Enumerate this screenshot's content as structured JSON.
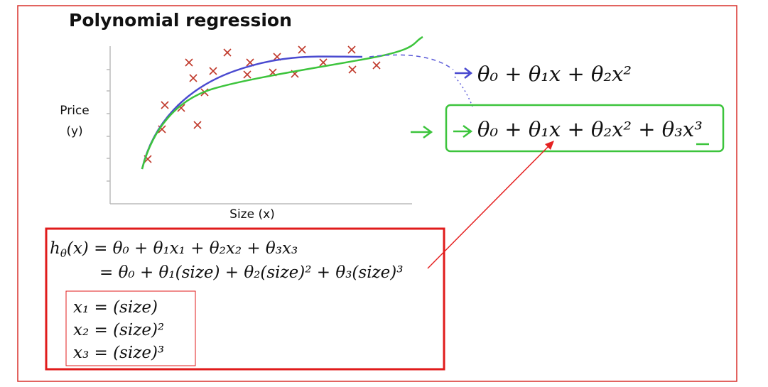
{
  "title": "Polynomial regression",
  "plot": {
    "y_label": [
      "Price",
      "(y)"
    ],
    "x_label": "Size (x)"
  },
  "formulas": {
    "quadratic": "θ₀ + θ₁x + θ₂x²",
    "cubic": "θ₀ + θ₁x + θ₂x² + θ₃x³"
  },
  "hypothesis": {
    "h": "h",
    "sub": "θ",
    "rest": "(x) = θ₀ + θ₁x₁ + θ₂x₂ + θ₃x₃",
    "line2": "= θ₀ + θ₁(size) + θ₂(size)² + θ₃(size)³"
  },
  "features": [
    "x₁ = (size)",
    "x₂ = (size)²",
    "x₃ = (size)³"
  ]
}
